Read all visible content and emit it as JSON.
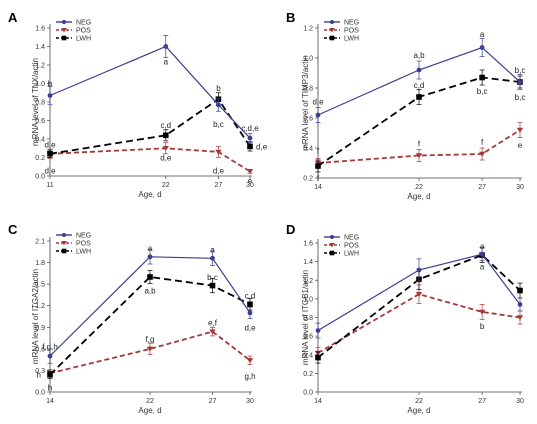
{
  "series_styles": [
    {
      "name": "NEG",
      "color": "#3a3f8f",
      "dash": "",
      "marker": "circle"
    },
    {
      "name": "POS",
      "color": "#a33a37",
      "dash": "5,3",
      "marker": "triangle"
    },
    {
      "name": "LWH",
      "color": "#000000",
      "dash": "7,4",
      "marker": "square"
    }
  ],
  "chart_data": [
    {
      "panel": "A",
      "type": "line",
      "ylabel": "mRNA level of TNX/actin",
      "xlabel": "Age, d",
      "x": [
        11,
        22,
        27,
        30
      ],
      "x_ticks": [
        "11",
        "22",
        "27",
        "30"
      ],
      "ylim": [
        0,
        1.6
      ],
      "y_ticks": [
        "0.0",
        "0.2",
        "0.4",
        "0.6",
        "0.8",
        "1.0",
        "1.2",
        "1.4",
        "1.6"
      ],
      "legend": "top-left",
      "series": [
        {
          "name": "NEG",
          "values": [
            0.87,
            1.4,
            0.77,
            0.41
          ],
          "errors": [
            0.1,
            0.12,
            0.07,
            0.05
          ]
        },
        {
          "name": "POS",
          "values": [
            0.24,
            0.3,
            0.26,
            0.05
          ],
          "errors": [
            0.05,
            0.06,
            0.06,
            0.02
          ]
        },
        {
          "name": "LWH",
          "values": [
            0.24,
            0.44,
            0.83,
            0.32
          ],
          "errors": [
            0.04,
            0.06,
            0.07,
            0.05
          ]
        }
      ],
      "annotations": [
        {
          "text": "b",
          "x": 11,
          "y": 1.0
        },
        {
          "text": "d,e",
          "x": 11,
          "y": 0.34
        },
        {
          "text": "d,e",
          "x": 11,
          "y": 0.06
        },
        {
          "text": "a",
          "x": 22,
          "y": 1.24
        },
        {
          "text": "c,d",
          "x": 22,
          "y": 0.55
        },
        {
          "text": "d,e",
          "x": 22,
          "y": 0.2
        },
        {
          "text": "b",
          "x": 27,
          "y": 0.95
        },
        {
          "text": "b,c",
          "x": 27,
          "y": 0.56
        },
        {
          "text": "d,e",
          "x": 27,
          "y": 0.06
        },
        {
          "text": "c,d,e",
          "x": 30,
          "y": 0.52
        },
        {
          "text": "d,e",
          "x": 31.1,
          "y": 0.32
        },
        {
          "text": "e",
          "x": 30,
          "y": -0.05
        }
      ]
    },
    {
      "panel": "B",
      "type": "line",
      "ylabel": "mRNA level of TIMP3/actin",
      "xlabel": "Age, d",
      "x": [
        14,
        22,
        27,
        30
      ],
      "x_ticks": [
        "14",
        "22",
        "27",
        "30"
      ],
      "ylim": [
        0.2,
        1.2
      ],
      "y_ticks": [
        "0.2",
        "0.4",
        "0.6",
        "0.8",
        "1.0",
        "1.2"
      ],
      "legend": "top-left",
      "series": [
        {
          "name": "NEG",
          "values": [
            0.62,
            0.92,
            1.07,
            0.84
          ],
          "errors": [
            0.05,
            0.06,
            0.06,
            0.05
          ]
        },
        {
          "name": "POS",
          "values": [
            0.3,
            0.35,
            0.36,
            0.52
          ],
          "errors": [
            0.03,
            0.04,
            0.04,
            0.05
          ]
        },
        {
          "name": "LWH",
          "values": [
            0.28,
            0.74,
            0.87,
            0.84
          ],
          "errors": [
            0.04,
            0.05,
            0.05,
            0.04
          ]
        }
      ],
      "annotations": [
        {
          "text": "d,e",
          "x": 14,
          "y": 0.71
        },
        {
          "text": "f",
          "x": 14,
          "y": 0.38
        },
        {
          "text": "f",
          "x": 14,
          "y": 0.2
        },
        {
          "text": "a,b",
          "x": 22,
          "y": 1.02
        },
        {
          "text": "c,d",
          "x": 22,
          "y": 0.82
        },
        {
          "text": "f",
          "x": 22,
          "y": 0.43
        },
        {
          "text": "a",
          "x": 27,
          "y": 1.16
        },
        {
          "text": "b,c",
          "x": 27,
          "y": 0.78
        },
        {
          "text": "f",
          "x": 27,
          "y": 0.44
        },
        {
          "text": "b,c",
          "x": 30,
          "y": 0.92
        },
        {
          "text": "b,c",
          "x": 30,
          "y": 0.74
        },
        {
          "text": "e",
          "x": 30,
          "y": 0.42
        }
      ]
    },
    {
      "panel": "C",
      "type": "line",
      "ylabel": "mRNA level of ITGA2/actin",
      "xlabel": "Age, d",
      "x": [
        14,
        22,
        27,
        30
      ],
      "x_ticks": [
        "14",
        "22",
        "27",
        "30"
      ],
      "ylim": [
        0,
        2.1
      ],
      "y_ticks": [
        "0.0",
        "0.3",
        "0.6",
        "0.9",
        "1.2",
        "1.5",
        "1.8",
        "2.1"
      ],
      "legend": "top-left",
      "series": [
        {
          "name": "NEG",
          "values": [
            0.5,
            1.88,
            1.86,
            1.1
          ],
          "errors": [
            0.1,
            0.1,
            0.1,
            0.08
          ]
        },
        {
          "name": "POS",
          "values": [
            0.26,
            0.6,
            0.84,
            0.44
          ],
          "errors": [
            0.05,
            0.08,
            0.06,
            0.06
          ]
        },
        {
          "name": "LWH",
          "values": [
            0.24,
            1.6,
            1.48,
            1.22
          ],
          "errors": [
            0.05,
            0.09,
            0.1,
            0.08
          ]
        }
      ],
      "annotations": [
        {
          "text": "f,g,h",
          "x": 14,
          "y": 0.63
        },
        {
          "text": "h",
          "x": 13.1,
          "y": 0.24
        },
        {
          "text": "h",
          "x": 14,
          "y": 0.06
        },
        {
          "text": "a",
          "x": 22,
          "y": 2.0
        },
        {
          "text": "a,b",
          "x": 22,
          "y": 1.41
        },
        {
          "text": "f,g",
          "x": 22,
          "y": 0.74
        },
        {
          "text": "a",
          "x": 27,
          "y": 1.98
        },
        {
          "text": "b,c",
          "x": 27,
          "y": 1.6
        },
        {
          "text": "e,f",
          "x": 27,
          "y": 0.97
        },
        {
          "text": "c,d",
          "x": 30,
          "y": 1.34
        },
        {
          "text": "d,e",
          "x": 30,
          "y": 0.9
        },
        {
          "text": "g,h",
          "x": 30,
          "y": 0.22
        }
      ]
    },
    {
      "panel": "D",
      "type": "line",
      "ylabel": "mRNA level of ITGB1/actin",
      "xlabel": "Age, d",
      "x": [
        14,
        22,
        27,
        30
      ],
      "x_ticks": [
        "14",
        "22",
        "27",
        "30"
      ],
      "ylim": [
        0,
        1.6
      ],
      "y_ticks": [
        "0.0",
        "0.2",
        "0.4",
        "0.6",
        "0.8",
        "1.0",
        "1.2",
        "1.4",
        "1.6"
      ],
      "legend": "top-left",
      "series": [
        {
          "name": "NEG",
          "values": [
            0.66,
            1.31,
            1.48,
            0.94
          ],
          "errors": [
            0.08,
            0.12,
            0.07,
            0.07
          ]
        },
        {
          "name": "POS",
          "values": [
            0.42,
            1.05,
            0.86,
            0.8
          ],
          "errors": [
            0.06,
            0.1,
            0.08,
            0.07
          ]
        },
        {
          "name": "LWH",
          "values": [
            0.37,
            1.21,
            1.47,
            1.09
          ],
          "errors": [
            0.06,
            0.11,
            0.08,
            0.08
          ]
        }
      ],
      "annotations": [
        {
          "text": "a",
          "x": 27,
          "y": 1.57
        },
        {
          "text": "a",
          "x": 27,
          "y": 1.35
        },
        {
          "text": "b",
          "x": 27,
          "y": 0.71
        }
      ]
    }
  ]
}
